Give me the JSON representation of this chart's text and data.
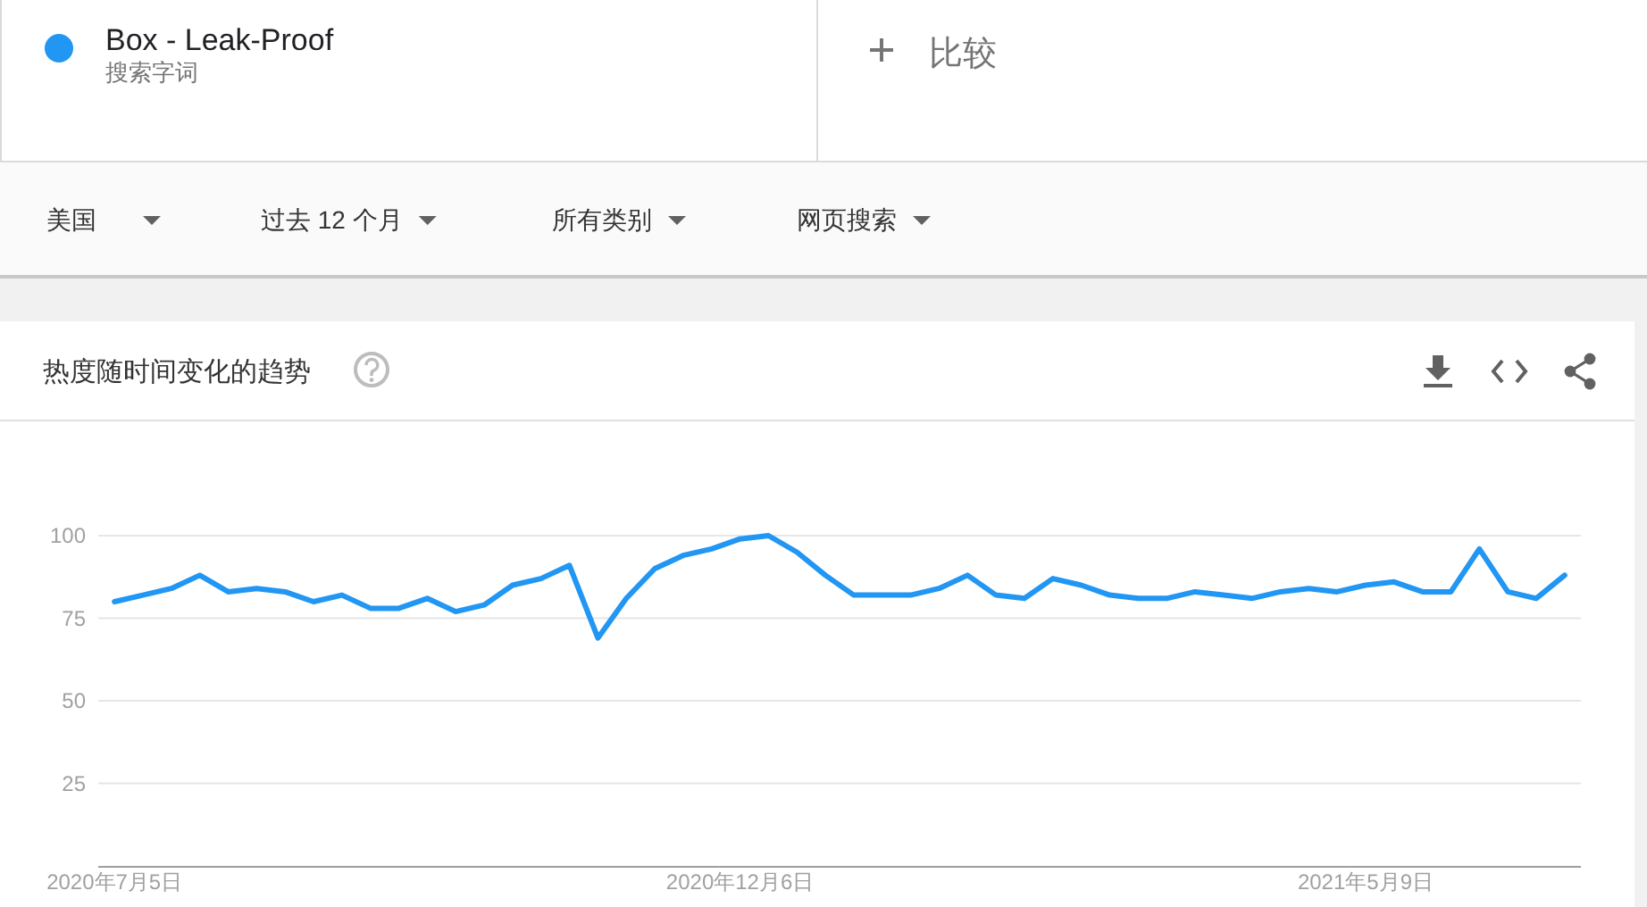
{
  "chart_data": {
    "type": "line",
    "title": "热度随时间变化的趋势",
    "annotations": [
      "搜索字词",
      "比较",
      "美国",
      "过去 12 个月",
      "所有类别",
      "网页搜索"
    ],
    "x": [
      "2020-07-05",
      "2020-07-12",
      "2020-07-19",
      "2020-07-26",
      "2020-08-02",
      "2020-08-09",
      "2020-08-16",
      "2020-08-23",
      "2020-08-30",
      "2020-09-06",
      "2020-09-13",
      "2020-09-20",
      "2020-09-27",
      "2020-10-04",
      "2020-10-11",
      "2020-10-18",
      "2020-10-25",
      "2020-11-01",
      "2020-11-08",
      "2020-11-15",
      "2020-11-22",
      "2020-11-29",
      "2020-12-06",
      "2020-12-13",
      "2020-12-20",
      "2020-12-27",
      "2021-01-03",
      "2021-01-10",
      "2021-01-17",
      "2021-01-24",
      "2021-01-31",
      "2021-02-07",
      "2021-02-14",
      "2021-02-21",
      "2021-02-28",
      "2021-03-07",
      "2021-03-14",
      "2021-03-21",
      "2021-03-28",
      "2021-04-04",
      "2021-04-11",
      "2021-04-18",
      "2021-04-25",
      "2021-05-02",
      "2021-05-09",
      "2021-05-16",
      "2021-05-23",
      "2021-05-30",
      "2021-06-06",
      "2021-06-13",
      "2021-06-20",
      "2021-06-27"
    ],
    "series": [
      {
        "name": "Box - Leak-Proof",
        "color": "#2196f3",
        "values": [
          80,
          82,
          84,
          88,
          83,
          84,
          83,
          80,
          82,
          78,
          78,
          81,
          77,
          79,
          85,
          87,
          91,
          69,
          81,
          90,
          94,
          96,
          99,
          100,
          95,
          88,
          82,
          82,
          82,
          84,
          88,
          82,
          81,
          87,
          85,
          82,
          81,
          81,
          83,
          82,
          81,
          83,
          84,
          83,
          85,
          86,
          83,
          83,
          96,
          83,
          81,
          88
        ]
      }
    ],
    "xlim": [
      "2020-07-01",
      "2021-07-01"
    ],
    "xticks": [
      {
        "value": "2020-07-05",
        "label": "2020年7月5日"
      },
      {
        "value": "2020-12-06",
        "label": "2020年12月6日"
      },
      {
        "value": "2021-05-09",
        "label": "2021年5月9日"
      }
    ],
    "ylim": [
      0,
      100
    ],
    "yticks": [
      25,
      50,
      75,
      100
    ],
    "grid": "y",
    "legend": "top left",
    "line_style": "solid"
  }
}
